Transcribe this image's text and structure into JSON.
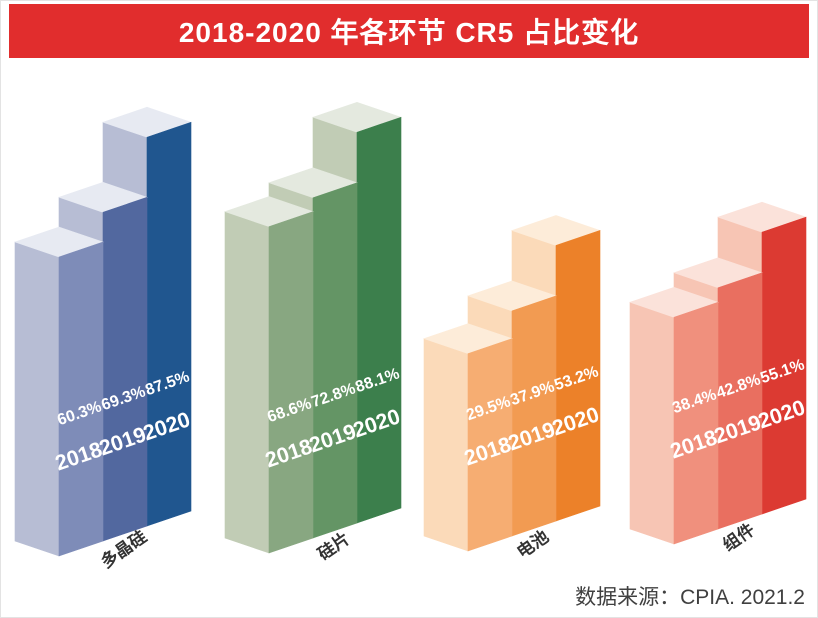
{
  "title": "2018-2020 年各环节 CR5 占比变化",
  "source": "数据来源：CPIA. 2021.2",
  "chart_data": {
    "type": "bar",
    "title": "2018-2020 年各环节 CR5 占比变化",
    "categories": [
      "多晶硅",
      "硅片",
      "电池",
      "组件"
    ],
    "series": [
      {
        "name": "2018",
        "values": [
          60.3,
          68.6,
          29.5,
          38.4
        ]
      },
      {
        "name": "2019",
        "values": [
          69.3,
          72.8,
          37.9,
          42.8
        ]
      },
      {
        "name": "2020",
        "values": [
          87.5,
          88.1,
          53.2,
          55.1
        ]
      }
    ],
    "unit": "%",
    "value_labels": true,
    "axes_shown": false,
    "legend_position": "none",
    "style": "3d-corner-bars"
  },
  "styles": {
    "banner_color": "#e12d2d",
    "title_color": "#ffffff",
    "label_color": "#ffffff",
    "category_color": "#333333",
    "source_color": "#404040",
    "groups": [
      {
        "top": "#e7eaf2",
        "side": "#b7bdd4",
        "faces": [
          "#7e8cb8",
          "#52689f",
          "#20568f"
        ]
      },
      {
        "top": "#e4e9df",
        "side": "#c1ccb5",
        "faces": [
          "#88a781",
          "#649565",
          "#3c7f4c"
        ]
      },
      {
        "top": "#fdecd9",
        "side": "#fbdab9",
        "faces": [
          "#f6ad72",
          "#f29b52",
          "#ec8129"
        ]
      },
      {
        "top": "#fbe2da",
        "side": "#f7c5b4",
        "faces": [
          "#f0907d",
          "#e96f60",
          "#dc3a32"
        ]
      }
    ]
  }
}
